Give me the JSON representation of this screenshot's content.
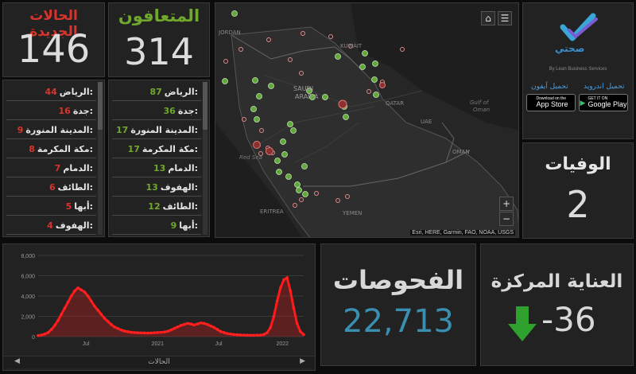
{
  "new_cases": {
    "title": "الحالات الجديدة",
    "value": "146",
    "list": [
      {
        "label": "الرياض:",
        "value": "44"
      },
      {
        "label": "جدة:",
        "value": "16"
      },
      {
        "label": "المدينة المنورة:",
        "value": "9"
      },
      {
        "label": "مكة المكرمة:",
        "value": "8"
      },
      {
        "label": "الدمام:",
        "value": "7"
      },
      {
        "label": "الطائف:",
        "value": "6"
      },
      {
        "label": "أبها:",
        "value": "5"
      },
      {
        "label": "الهفوف:",
        "value": "4"
      }
    ]
  },
  "recovered": {
    "title": "المتعافون",
    "value": "314",
    "list": [
      {
        "label": "الرياض:",
        "value": "87"
      },
      {
        "label": "جدة:",
        "value": "36"
      },
      {
        "label": "المدينة المنورة:",
        "value": "17"
      },
      {
        "label": "مكة المكرمة:",
        "value": "17"
      },
      {
        "label": "الدمام:",
        "value": "13"
      },
      {
        "label": "الهفوف:",
        "value": "13"
      },
      {
        "label": "الطائف:",
        "value": "12"
      },
      {
        "label": "أبها:",
        "value": "9"
      }
    ]
  },
  "map": {
    "labels": {
      "jordan": "JORDAN",
      "kuwait": "KUWAIT",
      "saudi": "SAUDI",
      "arabia": "ARABIA",
      "qatar": "QATAR",
      "uae": "UAE",
      "gulf": "Gulf of",
      "oman_gulf": "Oman",
      "red_sea": "Red Sea",
      "oman": "OMAN",
      "eritrea": "ERITREA",
      "yemen": "YEMEN"
    },
    "attribution": "Esri, HERE, Garmin, FAO, NOAA, USGS",
    "zoom_in": "+",
    "zoom_out": "−"
  },
  "app_panel": {
    "brand": "صحتي",
    "subtitle": "By Lean Business Services",
    "iphone_label": "تحميل آيفون",
    "android_label": "تحميل اندرويد",
    "app_store_small": "Download on the",
    "app_store_big": "App Store",
    "play_small": "GET IT ON",
    "play_big": "Google Play"
  },
  "deaths": {
    "title": "الوفيات",
    "value": "2"
  },
  "tests": {
    "title": "الفحوصات",
    "value": "22,713"
  },
  "icu": {
    "title": "العناية المركزة",
    "value": "-36"
  },
  "chart_nav": {
    "label": "الحالات"
  },
  "colors": {
    "new_cases_red": "#d9342b",
    "recovered_green": "#70a82c",
    "tests_teal": "#3a8fb0",
    "arrow_green": "#2ea12e"
  },
  "chart_data": {
    "type": "line",
    "yticks": [
      "0",
      "2,000",
      "4,000",
      "6,000",
      "8,000"
    ],
    "xticks": [
      "Jul",
      "2021",
      "Jul",
      "2022"
    ],
    "ylim": [
      0,
      8000
    ],
    "x": [
      0,
      1,
      2,
      3,
      4,
      5,
      6,
      7,
      8,
      9,
      10,
      11,
      12,
      13,
      14,
      15,
      16,
      17,
      18,
      19,
      20,
      21,
      22,
      23,
      24,
      25,
      26,
      27,
      28,
      29,
      30,
      31,
      32,
      33,
      34,
      35,
      36,
      37,
      38,
      39,
      40,
      41,
      42,
      43,
      44,
      45,
      46,
      47,
      48,
      49,
      50,
      51,
      52,
      53,
      54,
      55,
      56,
      57,
      58,
      59,
      60,
      61,
      62,
      63,
      64,
      65,
      66,
      67,
      68,
      69,
      70,
      71,
      72,
      73,
      74,
      75,
      76,
      77,
      78,
      79,
      80
    ],
    "series": [
      {
        "values": [
          100,
          150,
          250,
          400,
          700,
          1100,
          1600,
          2200,
          2800,
          3400,
          4000,
          4500,
          4800,
          4600,
          4400,
          4000,
          3500,
          3000,
          2600,
          2200,
          1800,
          1500,
          1200,
          950,
          800,
          650,
          550,
          480,
          430,
          400,
          380,
          370,
          360,
          350,
          360,
          380,
          400,
          420,
          450,
          520,
          650,
          800,
          950,
          1100,
          1200,
          1300,
          1250,
          1150,
          1250,
          1350,
          1300,
          1200,
          1050,
          900,
          700,
          500,
          400,
          300,
          250,
          200,
          180,
          160,
          150,
          140,
          130,
          130,
          140,
          150,
          200,
          400,
          900,
          2000,
          3500,
          4800,
          5600,
          5800,
          4500,
          2800,
          1300,
          500,
          200
        ]
      }
    ]
  }
}
